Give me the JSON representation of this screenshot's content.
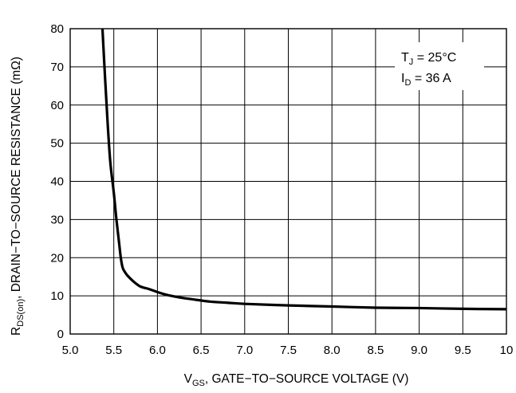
{
  "chart_data": {
    "type": "line",
    "title": "",
    "xlabel": {
      "main": "V",
      "sub": "GS",
      "rest": ", GATE−TO−SOURCE VOLTAGE (V)"
    },
    "ylabel": {
      "main": "R",
      "sub": "DS(on)",
      "rest": ", DRAIN−TO−SOURCE RESISTANCE (mΩ)"
    },
    "xlim": [
      5.0,
      10.0
    ],
    "ylim": [
      0,
      80
    ],
    "xticks": [
      5.0,
      5.5,
      6.0,
      6.5,
      7.0,
      7.5,
      8.0,
      8.5,
      9.0,
      9.5,
      10.0
    ],
    "xtick_labels": [
      "5.0",
      "5.5",
      "6.0",
      "6.5",
      "7.0",
      "7.5",
      "8.0",
      "8.5",
      "9.0",
      "9.5",
      "10"
    ],
    "yticks": [
      0,
      10,
      20,
      30,
      40,
      50,
      60,
      70,
      80
    ],
    "ytick_labels": [
      "0",
      "10",
      "20",
      "30",
      "40",
      "50",
      "60",
      "70",
      "80"
    ],
    "grid": true,
    "legend": "none",
    "annotation": {
      "position": "top-right",
      "line1": {
        "main": "T",
        "sub": "J",
        "rest": " = 25°C"
      },
      "line2": {
        "main": "I",
        "sub": "D",
        "rest": " = 36 A"
      }
    },
    "series": [
      {
        "color": "#000000",
        "x": [
          5.37,
          5.4,
          5.43,
          5.46,
          5.5,
          5.53,
          5.56,
          5.58,
          5.6,
          5.62,
          5.65,
          5.7,
          5.75,
          5.8,
          5.85,
          5.9,
          6.0,
          6.1,
          6.25,
          6.4,
          6.6,
          6.8,
          7.0,
          7.5,
          8.0,
          8.5,
          9.0,
          9.5,
          10.0
        ],
        "y": [
          80,
          67,
          55,
          45,
          37,
          30,
          24,
          20,
          17.5,
          16.5,
          15.5,
          14.3,
          13.3,
          12.5,
          12.1,
          11.8,
          11.0,
          10.3,
          9.6,
          9.1,
          8.5,
          8.2,
          7.9,
          7.5,
          7.2,
          6.9,
          6.8,
          6.6,
          6.5
        ]
      }
    ]
  }
}
